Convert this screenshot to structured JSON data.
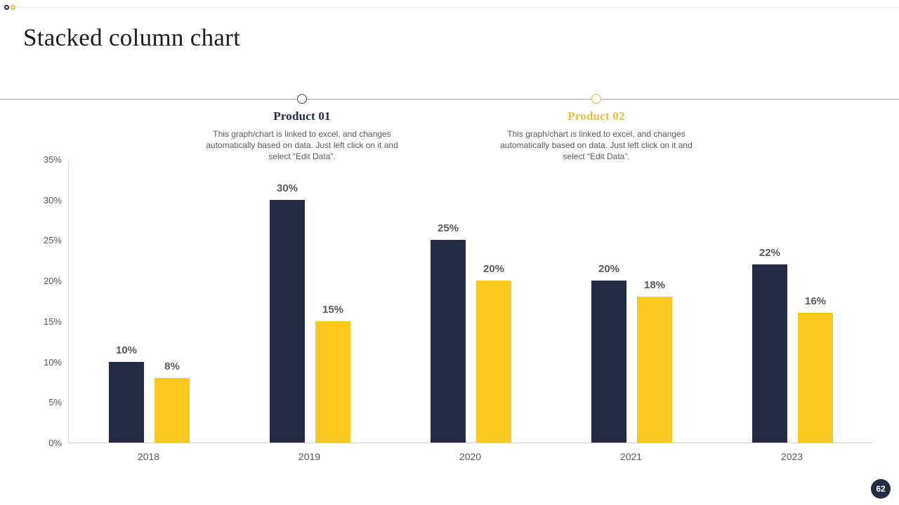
{
  "page": {
    "title": "Stacked column chart",
    "page_number": "62"
  },
  "callouts": [
    {
      "title": "Product 01",
      "description": "This graph/chart is linked to excel, and changes automatically based on data. Just left click on it and select “Edit Data”.",
      "accent_color": "#232C44"
    },
    {
      "title": "Product 02",
      "description": "This graph/chart is linked to excel, and changes automatically based on data. Just left click on it and select “Edit Data”.",
      "accent_color": "#E8BE3B"
    }
  ],
  "chart_data": {
    "type": "bar",
    "categories": [
      "2018",
      "2019",
      "2020",
      "2021",
      "2023"
    ],
    "series": [
      {
        "name": "Product 01",
        "color": "#232C44",
        "values": [
          10,
          30,
          25,
          20,
          22
        ]
      },
      {
        "name": "Product 02",
        "color": "#FFC91F",
        "values": [
          8,
          15,
          20,
          18,
          16
        ]
      }
    ],
    "ytick_labels": [
      "0%",
      "5%",
      "10%",
      "15%",
      "20%",
      "25%",
      "30%",
      "35%"
    ],
    "ylim": [
      0,
      35
    ],
    "grid": false,
    "data_labels": true,
    "data_label_suffix": "%",
    "legend_position": "none"
  },
  "colors": {
    "navy": "#232C44",
    "yellow": "#FFC91F",
    "gold_text": "#E8BE3B",
    "text_gray": "#595959",
    "divider": "#A9A9A9",
    "axis_line": "#CFCFCF"
  }
}
